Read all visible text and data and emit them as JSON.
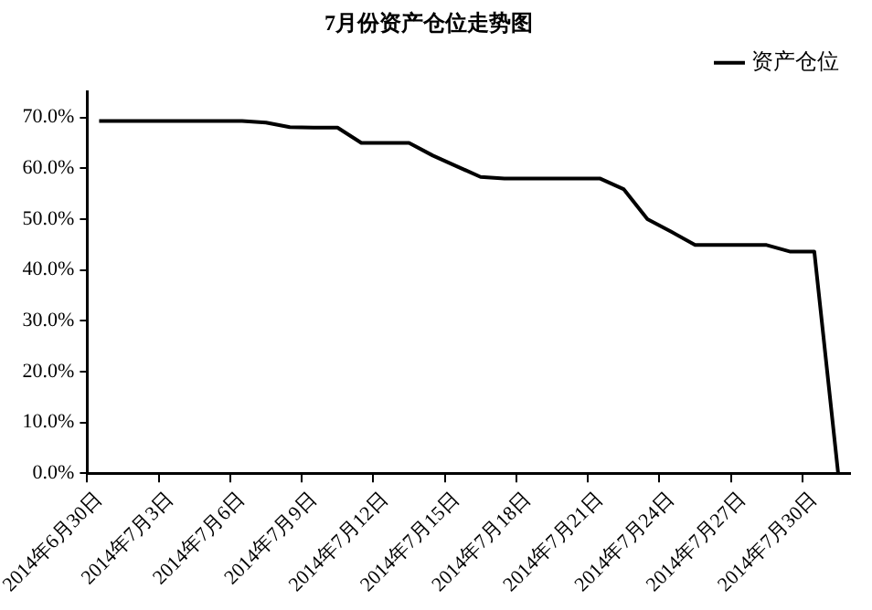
{
  "chart_data": {
    "type": "line",
    "title": "7月份资产仓位走势图",
    "categories": [
      "2014年6月30日",
      null,
      null,
      "2014年7月3日",
      null,
      null,
      "2014年7月6日",
      null,
      null,
      "2014年7月9日",
      null,
      null,
      "2014年7月12日",
      null,
      null,
      "2014年7月15日",
      null,
      null,
      "2014年7月18日",
      null,
      null,
      "2014年7月21日",
      null,
      null,
      "2014年7月24日",
      null,
      null,
      "2014年7月27日",
      null,
      null,
      "2014年7月30日",
      null
    ],
    "series": [
      {
        "name": "资产仓位",
        "color": "#000000",
        "values": [
          69.3,
          69.3,
          69.3,
          69.3,
          69.3,
          69.3,
          69.3,
          69.0,
          68.1,
          68.0,
          68.0,
          65.0,
          65.0,
          65.0,
          62.5,
          60.4,
          58.3,
          58.0,
          58.0,
          58.0,
          58.0,
          58.0,
          55.9,
          50.0,
          47.5,
          44.9,
          44.9,
          44.9,
          44.9,
          43.6,
          43.6,
          0
        ]
      }
    ],
    "ylim": [
      0,
      75
    ],
    "yticks": [
      {
        "value": 0,
        "label": "0.0%"
      },
      {
        "value": 10,
        "label": "10.0%"
      },
      {
        "value": 20,
        "label": "20.0%"
      },
      {
        "value": 30,
        "label": "30.0%"
      },
      {
        "value": 40,
        "label": "40.0%"
      },
      {
        "value": 50,
        "label": "50.0%"
      },
      {
        "value": 60,
        "label": "60.0%"
      },
      {
        "value": 70,
        "label": "70.0%"
      }
    ],
    "grid": false,
    "legend": "top right",
    "marker": "none",
    "line_style": "solid"
  }
}
